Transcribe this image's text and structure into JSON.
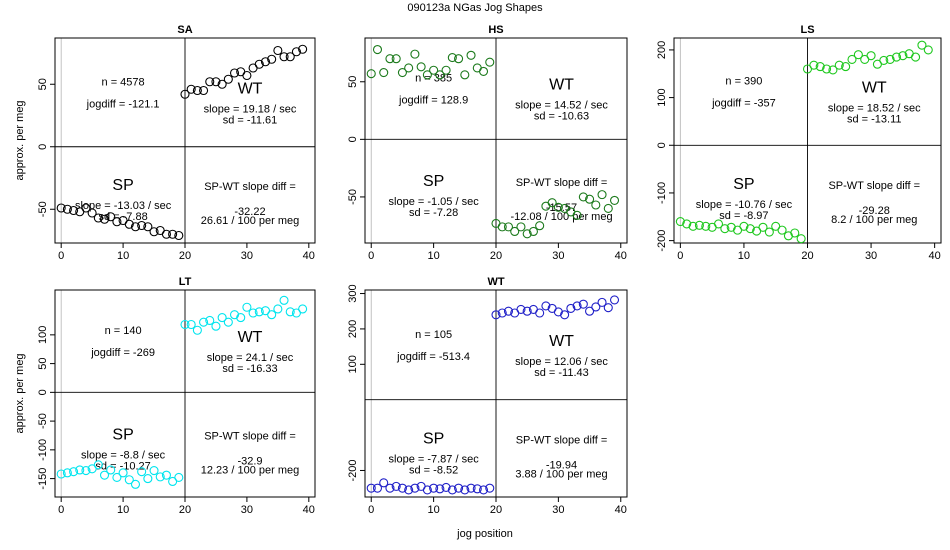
{
  "figure": {
    "title": "090123a    NGas Jog Shapes",
    "xlabel": "jog position"
  },
  "chart_data": [
    {
      "type": "scatter",
      "panel": "SA",
      "title": "SA",
      "ylabel": "approx. per meg",
      "color": "#000000",
      "xlim": [
        -1,
        41
      ],
      "ylim": [
        -77,
        87
      ],
      "xticks": [
        0,
        10,
        20,
        30,
        40
      ],
      "yticks": [
        -50,
        0,
        50
      ],
      "n_label": "n = 4578",
      "jogdiff_label": "jogdiff = -121.1",
      "sp": {
        "label": "SP",
        "slope": "slope = -13.03 / sec",
        "sd": "sd = -7.88"
      },
      "wt": {
        "label": "WT",
        "slope": "slope = 19.18 / sec",
        "sd": "sd = -11.61"
      },
      "diff": {
        "label": "SP-WT slope diff =",
        "value": "-32.22",
        "per_meg": "26.61 / 100 per meg"
      },
      "x": [
        0,
        1,
        2,
        3,
        4,
        5,
        6,
        7,
        8,
        9,
        10,
        11,
        12,
        13,
        14,
        15,
        16,
        17,
        18,
        19,
        20,
        21,
        22,
        23,
        24,
        25,
        26,
        27,
        28,
        29,
        30,
        31,
        32,
        33,
        34,
        35,
        36,
        37,
        38,
        39
      ],
      "y": [
        -49,
        -50,
        -51,
        -52,
        -49,
        -53,
        -57,
        -58,
        -56,
        -60,
        -59,
        -62,
        -64,
        -63,
        -64,
        -68,
        -67,
        -70,
        -70,
        -71,
        42,
        46,
        45,
        45,
        52,
        52,
        50,
        54,
        59,
        60,
        57,
        63,
        66,
        68,
        70,
        77,
        72,
        72,
        76,
        78
      ]
    },
    {
      "type": "scatter",
      "panel": "HS",
      "title": "HS",
      "ylabel": "",
      "color": "#1c7a1c",
      "xlim": [
        -1,
        41
      ],
      "ylim": [
        -90,
        88
      ],
      "xticks": [
        0,
        10,
        20,
        30,
        40
      ],
      "yticks": [
        -50,
        0,
        50
      ],
      "n_label": "n = 385",
      "jogdiff_label": "jogdiff = 128.9",
      "sp": {
        "label": "SP",
        "slope": "slope = -1.05 / sec",
        "sd": "sd = -7.28"
      },
      "wt": {
        "label": "WT",
        "slope": "slope = 14.52 / sec",
        "sd": "sd = -10.63"
      },
      "diff": {
        "label": "SP-WT slope diff =",
        "value": "-15.57",
        "per_meg": "-12.08 / 100 per meg"
      },
      "x": [
        0,
        1,
        2,
        3,
        4,
        5,
        6,
        7,
        8,
        9,
        10,
        11,
        12,
        13,
        14,
        15,
        16,
        17,
        18,
        19,
        20,
        21,
        22,
        23,
        24,
        25,
        26,
        27,
        28,
        29,
        30,
        31,
        32,
        33,
        34,
        35,
        36,
        37,
        38,
        39
      ],
      "y": [
        57,
        78,
        58,
        70,
        70,
        58,
        62,
        74,
        63,
        56,
        60,
        56,
        60,
        71,
        70,
        56,
        73,
        62,
        59,
        67,
        -73,
        -76,
        -76,
        -80,
        -76,
        -82,
        -80,
        -75,
        -58,
        -55,
        -59,
        -60,
        -63,
        -66,
        -50,
        -52,
        -57,
        -48,
        -60,
        -53
      ]
    },
    {
      "type": "scatter",
      "panel": "LS",
      "title": "LS",
      "ylabel": "",
      "color": "#1ec81e",
      "xlim": [
        -1,
        41
      ],
      "ylim": [
        -205,
        225
      ],
      "xticks": [
        0,
        10,
        20,
        30,
        40
      ],
      "yticks": [
        -200,
        -100,
        0,
        100,
        200
      ],
      "n_label": "n = 390",
      "jogdiff_label": "jogdiff = -357",
      "sp": {
        "label": "SP",
        "slope": "slope = -10.76 / sec",
        "sd": "sd = -8.97"
      },
      "wt": {
        "label": "WT",
        "slope": "slope = 18.52 / sec",
        "sd": "sd = -13.11"
      },
      "diff": {
        "label": "SP-WT slope diff =",
        "value": "-29.28",
        "per_meg": "8.2 / 100 per meg"
      },
      "x": [
        0,
        1,
        2,
        3,
        4,
        5,
        6,
        7,
        8,
        9,
        10,
        11,
        12,
        13,
        14,
        15,
        16,
        17,
        18,
        19,
        20,
        21,
        22,
        23,
        24,
        25,
        26,
        27,
        28,
        29,
        30,
        31,
        32,
        33,
        34,
        35,
        36,
        37,
        38,
        39
      ],
      "y": [
        -160,
        -165,
        -170,
        -168,
        -170,
        -172,
        -165,
        -175,
        -172,
        -178,
        -170,
        -175,
        -180,
        -172,
        -182,
        -170,
        -178,
        -190,
        -184,
        -196,
        160,
        168,
        165,
        160,
        158,
        168,
        165,
        180,
        190,
        180,
        188,
        170,
        178,
        180,
        185,
        188,
        192,
        185,
        210,
        200
      ]
    },
    {
      "type": "scatter",
      "panel": "LT",
      "title": "LT",
      "ylabel": "approx. per meg",
      "color": "#00e5ee",
      "xlim": [
        -1,
        41
      ],
      "ylim": [
        -182,
        178
      ],
      "xticks": [
        0,
        10,
        20,
        30,
        40
      ],
      "yticks": [
        -150,
        -100,
        -50,
        0,
        50,
        100
      ],
      "n_label": "n = 140",
      "jogdiff_label": "jogdiff = -269",
      "sp": {
        "label": "SP",
        "slope": "slope = -8.8 / sec",
        "sd": "sd = -10.27"
      },
      "wt": {
        "label": "WT",
        "slope": "slope = 24.1 / sec",
        "sd": "sd = -16.33"
      },
      "diff": {
        "label": "SP-WT slope diff =",
        "value": "-32.9",
        "per_meg": "12.23 / 100 per meg"
      },
      "x": [
        0,
        1,
        2,
        3,
        4,
        5,
        6,
        7,
        8,
        9,
        10,
        11,
        12,
        13,
        14,
        15,
        16,
        17,
        18,
        19,
        20,
        21,
        22,
        23,
        24,
        25,
        26,
        27,
        28,
        29,
        30,
        31,
        32,
        33,
        34,
        35,
        36,
        37,
        38,
        39
      ],
      "y": [
        -142,
        -140,
        -138,
        -135,
        -136,
        -133,
        -126,
        -144,
        -135,
        -148,
        -140,
        -152,
        -160,
        -138,
        -150,
        -136,
        -147,
        -144,
        -155,
        -148,
        118,
        118,
        108,
        122,
        125,
        115,
        130,
        122,
        135,
        130,
        148,
        138,
        140,
        142,
        135,
        145,
        160,
        140,
        138,
        145
      ]
    },
    {
      "type": "scatter",
      "panel": "WT",
      "title": "WT",
      "ylabel": "",
      "color": "#2020c8",
      "xlim": [
        -1,
        41
      ],
      "ylim": [
        -275,
        310
      ],
      "xticks": [
        0,
        10,
        20,
        30,
        40
      ],
      "yticks": [
        -200,
        100,
        200,
        300
      ],
      "n_label": "n = 105",
      "jogdiff_label": "jogdiff = -513.4",
      "sp": {
        "label": "SP",
        "slope": "slope = -7.87 / sec",
        "sd": "sd = -8.52"
      },
      "wt": {
        "label": "WT",
        "slope": "slope = 12.06 / sec",
        "sd": "sd = -11.43"
      },
      "diff": {
        "label": "SP-WT slope diff =",
        "value": "-19.94",
        "per_meg": "3.88 / 100 per meg"
      },
      "x": [
        0,
        1,
        2,
        3,
        4,
        5,
        6,
        7,
        8,
        9,
        10,
        11,
        12,
        13,
        14,
        15,
        16,
        17,
        18,
        19,
        20,
        21,
        22,
        23,
        24,
        25,
        26,
        27,
        28,
        29,
        30,
        31,
        32,
        33,
        34,
        35,
        36,
        37,
        38,
        39
      ],
      "y": [
        -250,
        -250,
        -235,
        -250,
        -245,
        -250,
        -255,
        -250,
        -245,
        -255,
        -250,
        -252,
        -248,
        -255,
        -250,
        -255,
        -250,
        -252,
        -255,
        -250,
        240,
        245,
        250,
        245,
        255,
        250,
        255,
        245,
        265,
        258,
        248,
        240,
        258,
        265,
        270,
        250,
        262,
        275,
        260,
        282
      ]
    }
  ]
}
